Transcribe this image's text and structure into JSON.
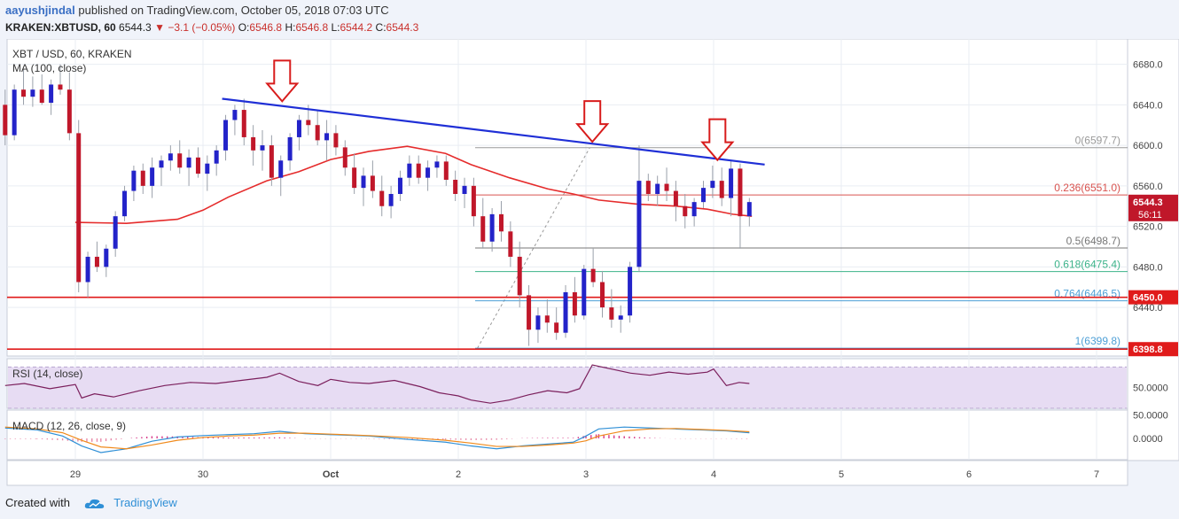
{
  "header": {
    "author": "aayushjindal",
    "published_text": "published on TradingView.com, October 05, 2018 07:03 UTC",
    "symbol_line": "KRAKEN:XBTUSD, 60",
    "last": "6544.3",
    "change": "−3.1 (−0.05%)",
    "open_label": "O:",
    "open": "6546.8",
    "high_label": "H:",
    "high": "6546.8",
    "low_label": "L:",
    "low": "6544.2",
    "close_label": "C:",
    "close": "6544.3"
  },
  "main_pane": {
    "title": "XBT / USD, 60, KRAKEN",
    "ma_label": "MA (100, close)"
  },
  "rsi_pane": {
    "label": "RSI (14, close)",
    "tick": "50.0000"
  },
  "macd_pane": {
    "label": "MACD (12, 26, close, 9)",
    "ticks": [
      "50.0000",
      "0.0000"
    ]
  },
  "footer": {
    "created_with": "Created with",
    "brand": "TradingView"
  },
  "colors": {
    "up": "#2323c9",
    "down": "#c0172a",
    "ma": "#e52b2b",
    "trendline": "#1f2fd6",
    "support": "#e01b1b",
    "arrow": "#d81c1c",
    "rsi": "#7b1f5c",
    "rsi_band": "#e7dcf3",
    "macd": "#2f8fd6",
    "signal": "#f08a1c",
    "hist_pos": "#d73a8a"
  },
  "chart_data": {
    "type": "candlestick",
    "title": "XBT / USD, 60, KRAKEN",
    "y_ticks": [
      6440,
      6480,
      6520,
      6560,
      6600,
      6640,
      6680
    ],
    "y_range": [
      6392,
      6705
    ],
    "x_ticks": [
      "29",
      "30",
      "Oct",
      "2",
      "3",
      "4",
      "5",
      "6",
      "7"
    ],
    "price_labels": [
      {
        "value": 6544.3,
        "text": "6544.3",
        "sub": "56:11",
        "color": "#c0172a"
      },
      {
        "value": 6450.0,
        "text": "6450.0",
        "color": "#e01b1b"
      },
      {
        "value": 6398.8,
        "text": "6398.8",
        "color": "#e01b1b"
      }
    ],
    "fibonacci": [
      {
        "ratio": "0",
        "value": 6597.7,
        "label": "0(6597.7)",
        "color": "#9a9a9a"
      },
      {
        "ratio": "0.236",
        "value": 6551.0,
        "label": "0.236(6551.0)",
        "color": "#d9534f"
      },
      {
        "ratio": "0.5",
        "value": 6498.7,
        "label": "0.5(6498.7)",
        "color": "#777777"
      },
      {
        "ratio": "0.618",
        "value": 6475.4,
        "label": "0.618(6475.4)",
        "color": "#3cb38a"
      },
      {
        "ratio": "0.764",
        "value": 6446.5,
        "label": "0.764(6446.5)",
        "color": "#4d9fd6"
      },
      {
        "ratio": "1",
        "value": 6399.8,
        "label": "1(6399.8)",
        "color": "#4d9fd6"
      }
    ],
    "support_levels": [
      6450.0,
      6398.8
    ],
    "trendline": {
      "from": {
        "day": 1.15,
        "price": 6646
      },
      "to": {
        "day": 5.4,
        "price": 6581
      }
    },
    "arrows": [
      {
        "day": 1.62,
        "price": 6640
      },
      {
        "day": 4.05,
        "price": 6600
      },
      {
        "day": 5.03,
        "price": 6582
      }
    ],
    "ma_points": [
      [
        0.0,
        6524
      ],
      [
        0.4,
        6523
      ],
      [
        0.8,
        6527
      ],
      [
        1.0,
        6536
      ],
      [
        1.2,
        6549
      ],
      [
        1.5,
        6565
      ],
      [
        1.75,
        6574
      ],
      [
        2.0,
        6586
      ],
      [
        2.3,
        6594
      ],
      [
        2.6,
        6599
      ],
      [
        2.9,
        6592
      ],
      [
        3.1,
        6581
      ],
      [
        3.4,
        6568
      ],
      [
        3.7,
        6557
      ],
      [
        3.9,
        6552
      ],
      [
        4.1,
        6546
      ],
      [
        4.4,
        6542
      ],
      [
        4.7,
        6540
      ],
      [
        4.95,
        6537
      ],
      [
        5.15,
        6532
      ],
      [
        5.3,
        6530
      ]
    ],
    "candle_days": [
      -0.55,
      5.28
    ],
    "candles_ohlc": [
      [
        6640,
        6655,
        6600,
        6610
      ],
      [
        6610,
        6660,
        6605,
        6655
      ],
      [
        6655,
        6675,
        6640,
        6648
      ],
      [
        6648,
        6668,
        6638,
        6655
      ],
      [
        6655,
        6670,
        6640,
        6642
      ],
      [
        6642,
        6665,
        6630,
        6660
      ],
      [
        6660,
        6680,
        6650,
        6655
      ],
      [
        6655,
        6672,
        6605,
        6612
      ],
      [
        6612,
        6625,
        6455,
        6465
      ],
      [
        6465,
        6495,
        6450,
        6490
      ],
      [
        6490,
        6505,
        6475,
        6480
      ],
      [
        6480,
        6502,
        6470,
        6498
      ],
      [
        6498,
        6535,
        6490,
        6530
      ],
      [
        6530,
        6560,
        6525,
        6555
      ],
      [
        6555,
        6580,
        6545,
        6575
      ],
      [
        6575,
        6582,
        6552,
        6560
      ],
      [
        6560,
        6588,
        6548,
        6578
      ],
      [
        6578,
        6590,
        6560,
        6585
      ],
      [
        6585,
        6600,
        6575,
        6592
      ],
      [
        6592,
        6605,
        6572,
        6578
      ],
      [
        6578,
        6596,
        6560,
        6588
      ],
      [
        6588,
        6598,
        6568,
        6572
      ],
      [
        6572,
        6590,
        6555,
        6582
      ],
      [
        6582,
        6600,
        6570,
        6595
      ],
      [
        6595,
        6630,
        6585,
        6625
      ],
      [
        6625,
        6640,
        6610,
        6635
      ],
      [
        6635,
        6646,
        6600,
        6608
      ],
      [
        6608,
        6620,
        6580,
        6595
      ],
      [
        6595,
        6615,
        6575,
        6600
      ],
      [
        6600,
        6610,
        6560,
        6568
      ],
      [
        6568,
        6590,
        6550,
        6585
      ],
      [
        6585,
        6612,
        6575,
        6608
      ],
      [
        6608,
        6630,
        6595,
        6625
      ],
      [
        6625,
        6640,
        6610,
        6620
      ],
      [
        6620,
        6635,
        6600,
        6605
      ],
      [
        6605,
        6625,
        6585,
        6612
      ],
      [
        6612,
        6620,
        6590,
        6598
      ],
      [
        6598,
        6605,
        6570,
        6578
      ],
      [
        6578,
        6592,
        6552,
        6558
      ],
      [
        6558,
        6578,
        6540,
        6570
      ],
      [
        6570,
        6585,
        6548,
        6555
      ],
      [
        6555,
        6570,
        6530,
        6540
      ],
      [
        6540,
        6560,
        6528,
        6552
      ],
      [
        6552,
        6575,
        6545,
        6568
      ],
      [
        6568,
        6590,
        6560,
        6582
      ],
      [
        6582,
        6590,
        6562,
        6568
      ],
      [
        6568,
        6585,
        6555,
        6578
      ],
      [
        6578,
        6590,
        6568,
        6584
      ],
      [
        6584,
        6590,
        6560,
        6566
      ],
      [
        6566,
        6575,
        6545,
        6552
      ],
      [
        6552,
        6568,
        6538,
        6560
      ],
      [
        6560,
        6568,
        6520,
        6530
      ],
      [
        6530,
        6548,
        6498,
        6505
      ],
      [
        6505,
        6538,
        6495,
        6532
      ],
      [
        6532,
        6545,
        6505,
        6515
      ],
      [
        6515,
        6525,
        6480,
        6490
      ],
      [
        6490,
        6505,
        6440,
        6452
      ],
      [
        6452,
        6462,
        6402,
        6418
      ],
      [
        6418,
        6440,
        6405,
        6432
      ],
      [
        6432,
        6448,
        6415,
        6425
      ],
      [
        6425,
        6440,
        6408,
        6415
      ],
      [
        6415,
        6462,
        6410,
        6455
      ],
      [
        6455,
        6470,
        6425,
        6432
      ],
      [
        6432,
        6482,
        6428,
        6478
      ],
      [
        6478,
        6498,
        6460,
        6465
      ],
      [
        6465,
        6476,
        6430,
        6440
      ],
      [
        6440,
        6458,
        6420,
        6428
      ],
      [
        6428,
        6442,
        6415,
        6432
      ],
      [
        6432,
        6485,
        6425,
        6480
      ],
      [
        6480,
        6600,
        6475,
        6565
      ],
      [
        6565,
        6572,
        6545,
        6552
      ],
      [
        6552,
        6570,
        6540,
        6562
      ],
      [
        6562,
        6578,
        6545,
        6555
      ],
      [
        6555,
        6565,
        6525,
        6540
      ],
      [
        6540,
        6552,
        6518,
        6530
      ],
      [
        6530,
        6548,
        6520,
        6544
      ],
      [
        6544,
        6565,
        6538,
        6558
      ],
      [
        6558,
        6580,
        6548,
        6565
      ],
      [
        6565,
        6578,
        6540,
        6548
      ],
      [
        6548,
        6585,
        6530,
        6577
      ],
      [
        6577,
        6582,
        6498,
        6530
      ],
      [
        6530,
        6548,
        6520,
        6544
      ]
    ],
    "rsi_points": [
      [
        -0.55,
        52
      ],
      [
        -0.4,
        54
      ],
      [
        -0.2,
        49
      ],
      [
        0.0,
        53
      ],
      [
        0.05,
        40
      ],
      [
        0.15,
        44
      ],
      [
        0.3,
        41
      ],
      [
        0.5,
        47
      ],
      [
        0.7,
        52
      ],
      [
        0.9,
        55
      ],
      [
        1.1,
        54
      ],
      [
        1.3,
        57
      ],
      [
        1.5,
        60
      ],
      [
        1.6,
        64
      ],
      [
        1.75,
        56
      ],
      [
        1.9,
        52
      ],
      [
        2.0,
        58
      ],
      [
        2.15,
        55
      ],
      [
        2.3,
        54
      ],
      [
        2.5,
        57
      ],
      [
        2.7,
        51
      ],
      [
        2.85,
        45
      ],
      [
        3.0,
        42
      ],
      [
        3.1,
        38
      ],
      [
        3.25,
        35
      ],
      [
        3.4,
        38
      ],
      [
        3.55,
        43
      ],
      [
        3.7,
        47
      ],
      [
        3.85,
        45
      ],
      [
        3.95,
        49
      ],
      [
        4.05,
        72
      ],
      [
        4.2,
        68
      ],
      [
        4.35,
        64
      ],
      [
        4.5,
        62
      ],
      [
        4.65,
        65
      ],
      [
        4.8,
        63
      ],
      [
        4.95,
        65
      ],
      [
        5.0,
        68
      ],
      [
        5.1,
        52
      ],
      [
        5.2,
        55
      ],
      [
        5.28,
        54
      ]
    ],
    "macd_line": [
      [
        -0.55,
        22
      ],
      [
        -0.3,
        18
      ],
      [
        -0.1,
        5
      ],
      [
        0.05,
        -16
      ],
      [
        0.2,
        -30
      ],
      [
        0.4,
        -22
      ],
      [
        0.6,
        -6
      ],
      [
        0.8,
        3
      ],
      [
        1.0,
        6
      ],
      [
        1.2,
        8
      ],
      [
        1.4,
        10
      ],
      [
        1.6,
        15
      ],
      [
        1.8,
        10
      ],
      [
        2.0,
        8
      ],
      [
        2.3,
        5
      ],
      [
        2.6,
        -2
      ],
      [
        2.9,
        -8
      ],
      [
        3.1,
        -16
      ],
      [
        3.3,
        -22
      ],
      [
        3.5,
        -16
      ],
      [
        3.7,
        -12
      ],
      [
        3.9,
        -8
      ],
      [
        4.0,
        5
      ],
      [
        4.1,
        20
      ],
      [
        4.3,
        24
      ],
      [
        4.5,
        22
      ],
      [
        4.7,
        20
      ],
      [
        4.9,
        18
      ],
      [
        5.1,
        16
      ],
      [
        5.28,
        12
      ]
    ],
    "signal_line": [
      [
        -0.55,
        24
      ],
      [
        -0.3,
        20
      ],
      [
        -0.1,
        12
      ],
      [
        0.05,
        -4
      ],
      [
        0.2,
        -18
      ],
      [
        0.4,
        -22
      ],
      [
        0.6,
        -14
      ],
      [
        0.8,
        -4
      ],
      [
        1.0,
        2
      ],
      [
        1.2,
        5
      ],
      [
        1.4,
        7
      ],
      [
        1.6,
        11
      ],
      [
        1.8,
        11
      ],
      [
        2.0,
        9
      ],
      [
        2.3,
        6
      ],
      [
        2.6,
        2
      ],
      [
        2.9,
        -4
      ],
      [
        3.1,
        -10
      ],
      [
        3.3,
        -17
      ],
      [
        3.5,
        -17
      ],
      [
        3.7,
        -14
      ],
      [
        3.9,
        -10
      ],
      [
        4.0,
        -5
      ],
      [
        4.1,
        5
      ],
      [
        4.3,
        16
      ],
      [
        4.5,
        20
      ],
      [
        4.7,
        21
      ],
      [
        4.9,
        19
      ],
      [
        5.1,
        17
      ],
      [
        5.28,
        14
      ]
    ]
  }
}
